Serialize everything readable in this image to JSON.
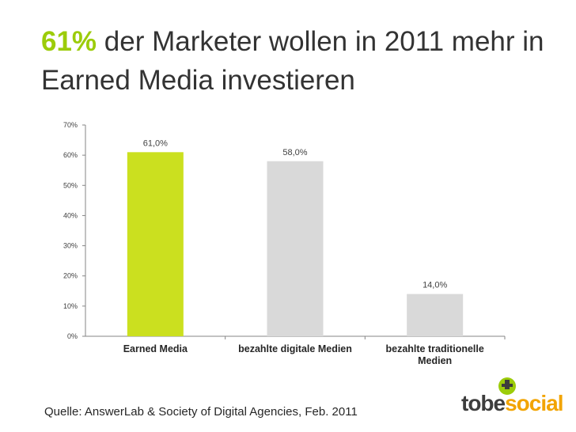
{
  "headline": {
    "highlight": "61%",
    "rest": " der Marketer wollen in 2011 mehr in Earned Media investieren"
  },
  "source": "Quelle: AnswerLab & Society of Digital Agencies, Feb. 2011",
  "logo": {
    "part1": "tobe",
    "part2": "social"
  },
  "colors": {
    "accent": "#9ccc0a",
    "bar_gray": "#d9d9d9",
    "logo_orange": "#f2a400"
  },
  "chart_data": {
    "type": "bar",
    "title": "",
    "xlabel": "",
    "ylabel": "",
    "ylim": [
      0,
      70
    ],
    "yticks": [
      "0%",
      "10%",
      "20%",
      "30%",
      "40%",
      "50%",
      "60%",
      "70%"
    ],
    "ytick_values": [
      0,
      10,
      20,
      30,
      40,
      50,
      60,
      70
    ],
    "categories": [
      [
        "Earned Media"
      ],
      [
        "bezahlte digitale Medien"
      ],
      [
        "bezahlte traditionelle",
        "Medien"
      ]
    ],
    "values": [
      61.0,
      58.0,
      14.0
    ],
    "data_labels": [
      "61,0%",
      "58,0%",
      "14,0%"
    ],
    "bar_colors": [
      "#cbe01f",
      "#d9d9d9",
      "#d9d9d9"
    ],
    "grid": false,
    "legend": "none"
  }
}
